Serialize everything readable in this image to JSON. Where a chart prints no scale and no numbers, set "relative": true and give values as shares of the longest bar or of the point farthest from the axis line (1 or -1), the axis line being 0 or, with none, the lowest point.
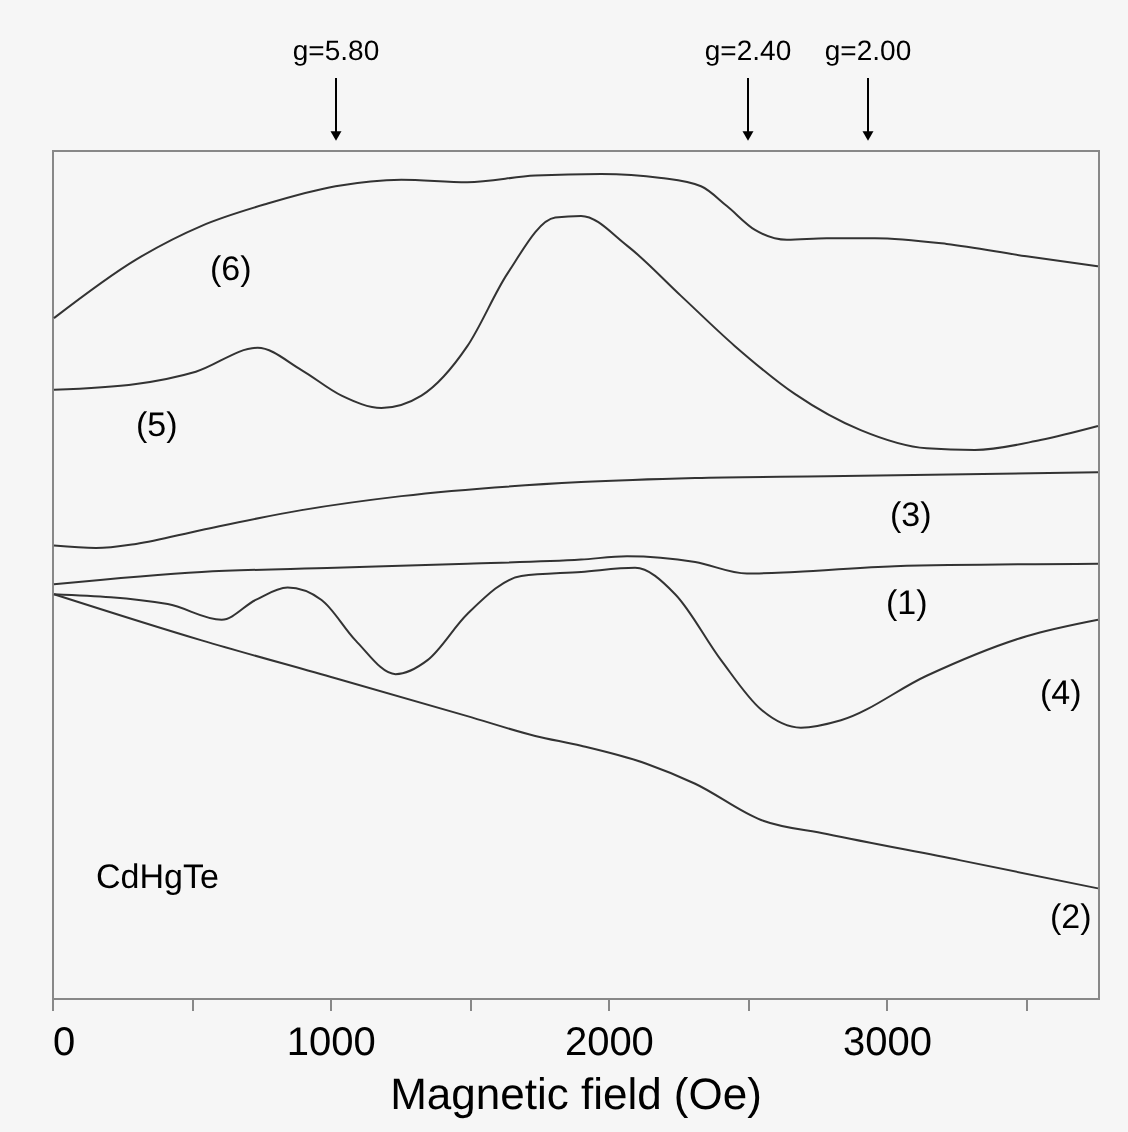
{
  "chart_data": {
    "type": "line",
    "relative": true,
    "xlabel": "Magnetic field (Oe)",
    "xlim": [
      0,
      3760
    ],
    "xticks": [
      0,
      {
        "value": 500,
        "label": null
      },
      1000,
      {
        "value": 1500,
        "label": null
      },
      2000,
      {
        "value": 2500,
        "label": null
      },
      3000,
      {
        "value": 3500,
        "label": null
      }
    ],
    "grid": false,
    "legend": false,
    "marker": "none",
    "line_style": "solid",
    "annotations": [
      "g=5.80",
      "g=2.40",
      "g=2.00",
      "CdHgTe"
    ],
    "series": [
      {
        "name": "(6)",
        "color": "#333333",
        "x": [
          7,
          302,
          538,
          775,
          1019,
          1256,
          1493,
          1737,
          1974,
          2190,
          2333,
          2426,
          2527,
          2642,
          2785,
          2958,
          3216,
          3503,
          3760
        ],
        "values": [
          0.825,
          0.896,
          0.937,
          0.964,
          0.985,
          0.993,
          0.99,
          0.998,
          1.0,
          0.995,
          0.985,
          0.961,
          0.932,
          0.92,
          0.922,
          0.922,
          0.915,
          0.9,
          0.888
        ]
      },
      {
        "name": "(5)",
        "color": "#333333",
        "x": [
          7,
          302,
          517,
          739,
          897,
          1041,
          1184,
          1328,
          1493,
          1637,
          1809,
          1902,
          2067,
          2261,
          2455,
          2670,
          2907,
          3144,
          3317,
          3553,
          3760
        ],
        "values": [
          0.738,
          0.745,
          0.76,
          0.789,
          0.762,
          0.731,
          0.716,
          0.731,
          0.791,
          0.879,
          0.947,
          0.949,
          0.913,
          0.852,
          0.791,
          0.733,
          0.689,
          0.667,
          0.665,
          0.677,
          0.694
        ]
      },
      {
        "name": "(3)",
        "color": "#333333",
        "x": [
          7,
          158,
          302,
          538,
          897,
          1256,
          1902,
          2312,
          2785,
          3760
        ],
        "values": [
          0.549,
          0.546,
          0.551,
          0.568,
          0.592,
          0.609,
          0.626,
          0.631,
          0.633,
          0.638
        ]
      },
      {
        "name": "(1)",
        "color": "#333333",
        "x": [
          7,
          538,
          1019,
          1493,
          1902,
          2067,
          2312,
          2498,
          2670,
          3029,
          3760
        ],
        "values": [
          0.502,
          0.517,
          0.522,
          0.527,
          0.532,
          0.536,
          0.529,
          0.515,
          0.517,
          0.524,
          0.527
        ]
      },
      {
        "name": "(4)",
        "color": "#333333",
        "x": [
          7,
          416,
          610,
          732,
          847,
          969,
          1091,
          1235,
          1350,
          1493,
          1687,
          1902,
          2096,
          2240,
          2405,
          2549,
          2692,
          2836,
          3144,
          3503,
          3760
        ],
        "values": [
          0.49,
          0.478,
          0.459,
          0.483,
          0.498,
          0.483,
          0.434,
          0.393,
          0.41,
          0.466,
          0.512,
          0.517,
          0.522,
          0.49,
          0.41,
          0.35,
          0.328,
          0.337,
          0.391,
          0.439,
          0.459
        ]
      },
      {
        "name": "(2)",
        "color": "#333333",
        "x": [
          7,
          538,
          1019,
          1493,
          1737,
          1902,
          2139,
          2312,
          2549,
          2785,
          3266,
          3760
        ],
        "values": [
          0.49,
          0.434,
          0.388,
          0.342,
          0.318,
          0.306,
          0.284,
          0.26,
          0.216,
          0.199,
          0.167,
          0.133
        ]
      }
    ]
  }
}
